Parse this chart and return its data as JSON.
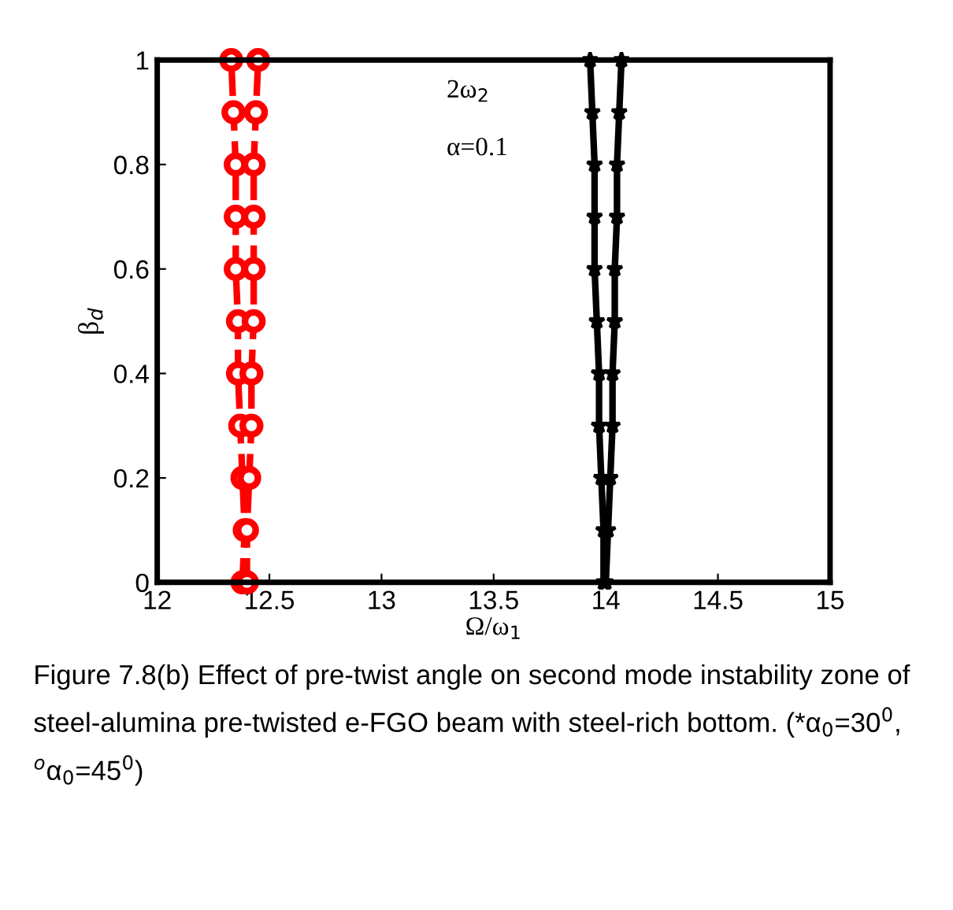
{
  "chart_data": {
    "type": "line",
    "xlabel": "Ω/ω$_{1}$",
    "ylabel": "β$_{d}$",
    "xlim": [
      12,
      15
    ],
    "xticks": [
      12,
      12.5,
      13,
      13.5,
      14,
      14.5,
      15
    ],
    "ylim": [
      0,
      1
    ],
    "yticks": [
      0,
      0.2,
      0.4,
      0.6,
      0.8,
      1
    ],
    "grid": false,
    "series": [
      {
        "color": "#ff0000",
        "marker": "circle",
        "line_style": "dashed",
        "x": [
          12.38,
          12.39,
          12.38,
          12.37,
          12.36,
          12.36,
          12.35,
          12.35,
          12.35,
          12.34,
          12.33
        ],
        "values": [
          0,
          0.1,
          0.2,
          0.3,
          0.4,
          0.5,
          0.6,
          0.7,
          0.8,
          0.9,
          1
        ]
      },
      {
        "color": "#ff0000",
        "marker": "circle",
        "line_style": "dashed",
        "x": [
          12.4,
          12.4,
          12.41,
          12.42,
          12.42,
          12.43,
          12.43,
          12.43,
          12.43,
          12.44,
          12.45
        ],
        "values": [
          0,
          0.1,
          0.2,
          0.3,
          0.4,
          0.5,
          0.6,
          0.7,
          0.8,
          0.9,
          1
        ]
      },
      {
        "color": "#000000",
        "marker": "star",
        "line_style": "solid",
        "x": [
          13.99,
          13.99,
          13.98,
          13.97,
          13.97,
          13.96,
          13.95,
          13.95,
          13.95,
          13.94,
          13.93
        ],
        "values": [
          0,
          0.1,
          0.2,
          0.3,
          0.4,
          0.5,
          0.6,
          0.7,
          0.8,
          0.9,
          1
        ]
      },
      {
        "color": "#000000",
        "marker": "star",
        "line_style": "solid",
        "x": [
          14.0,
          14.01,
          14.02,
          14.03,
          14.03,
          14.04,
          14.04,
          14.05,
          14.05,
          14.06,
          14.07
        ],
        "values": [
          0,
          0.1,
          0.2,
          0.3,
          0.4,
          0.5,
          0.6,
          0.7,
          0.8,
          0.9,
          1
        ]
      }
    ],
    "annotations": [
      "2ω$_{2}$",
      "α=0.1",
      "Figure 7.8(b) Effect of pre-twist angle on second mode instability zone of steel-alumina pre-twisted e-FGO beam with steel-rich bottom. (*α$_{0}$=30$^{0}$, $^{o}$α$_{0}$=45$^{0}$)"
    ]
  }
}
